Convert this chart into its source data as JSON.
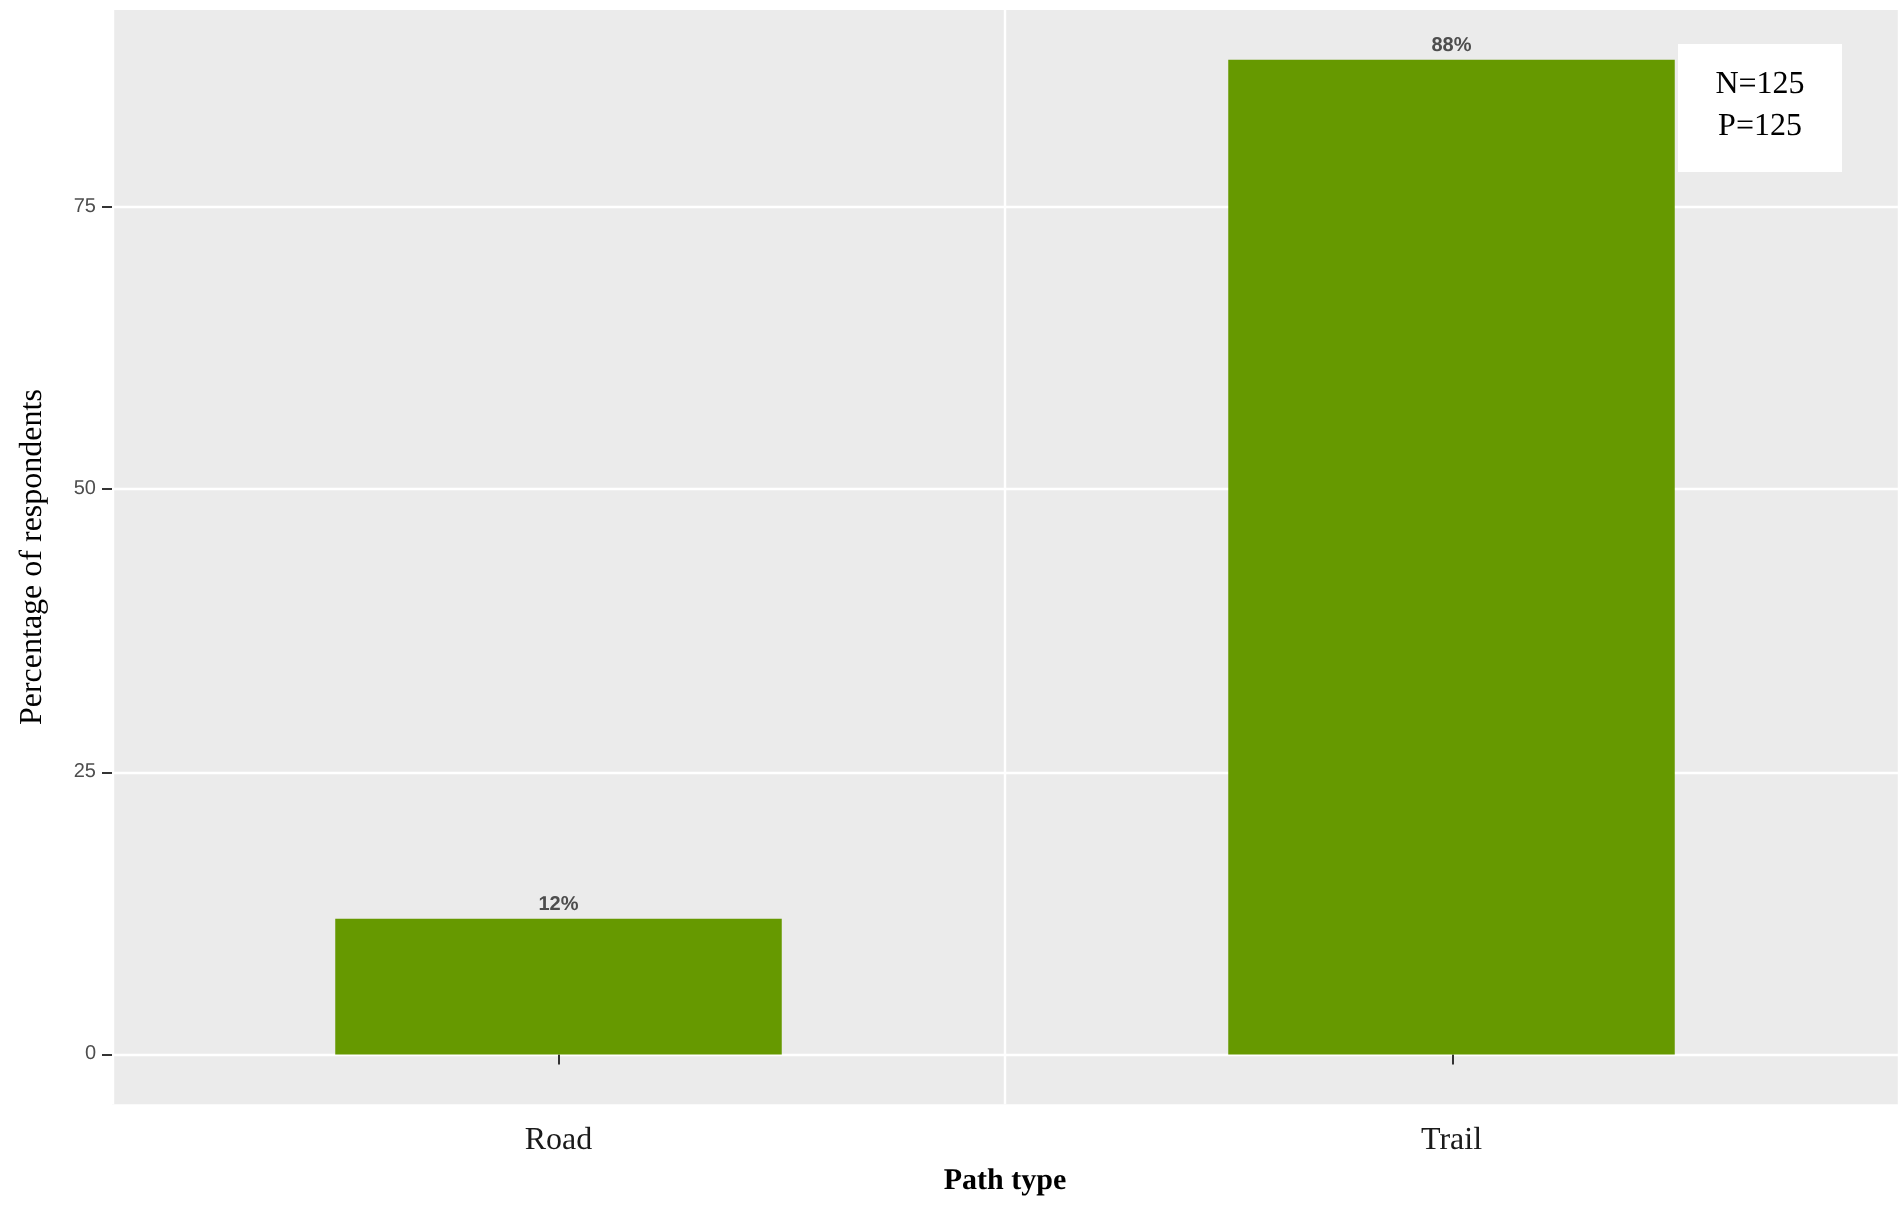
{
  "chart_data": {
    "type": "bar",
    "xlabel": "Path type",
    "ylabel": "Percentage of respondents",
    "categories": [
      "Road",
      "Trail"
    ],
    "values": [
      12,
      88
    ],
    "color": "#669900",
    "value_labels": [
      "12%",
      "88%"
    ],
    "ylim": [
      -4.4,
      92.4
    ],
    "yticks": [
      0,
      25,
      50,
      75
    ],
    "grid": true,
    "annotations": [
      "N=125",
      "P=125"
    ]
  }
}
